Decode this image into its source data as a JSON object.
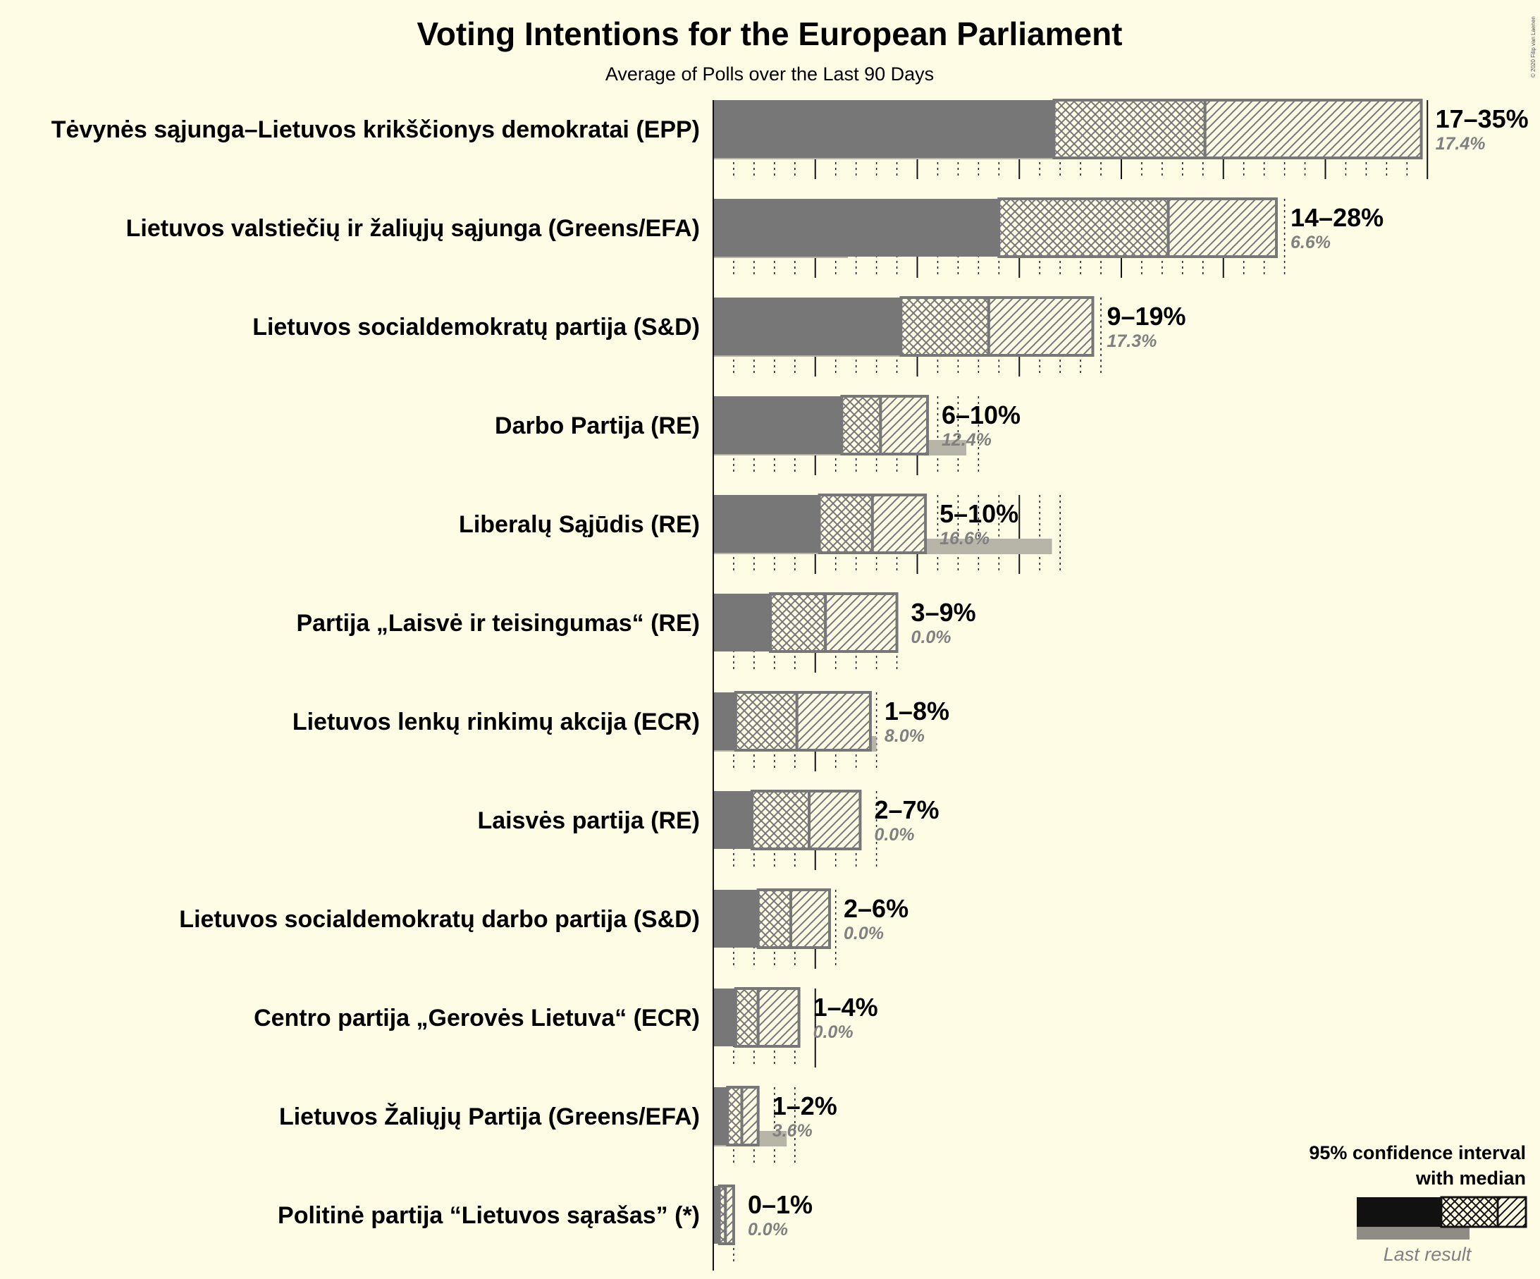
{
  "chart_data": {
    "type": "bar",
    "title": "Voting Intentions for the European Parliament",
    "subtitle": "Average of Polls over the Last 90 Days",
    "copyright": "© 2020 Filip van Laenen",
    "xlim": [
      0,
      35
    ],
    "grid": true,
    "legend_position": "bottom-right",
    "parties": [
      {
        "name": "Tėvynės sąjunga–Lietuvos krikščionys demokratai (EPP)",
        "low": 16.7,
        "q1": 24.1,
        "median": 24.1,
        "q3": 24.1,
        "high": 34.7,
        "ci_low": 16.7,
        "ci_mid": 24.1,
        "ci_high": 34.7,
        "label": "17–35%",
        "last": 17.4,
        "last_label": "17.4%"
      },
      {
        "name": "Lietuvos valstiečių ir žaliųjų sąjunga (Greens/EFA)",
        "low": 14.0,
        "ci_mid": 22.3,
        "high": 27.6,
        "label": "14–28%",
        "last": 6.6,
        "last_label": "6.6%"
      },
      {
        "name": "Lietuvos socialdemokratų partija (S&D)",
        "low": 9.2,
        "ci_mid": 13.5,
        "high": 18.6,
        "label": "9–19%",
        "last": 17.3,
        "last_label": "17.3%"
      },
      {
        "name": "Darbo Partija (RE)",
        "low": 6.3,
        "ci_mid": 8.2,
        "high": 10.5,
        "label": "6–10%",
        "last": 12.4,
        "last_label": "12.4%"
      },
      {
        "name": "Liberalų Sąjūdis (RE)",
        "low": 5.2,
        "ci_mid": 7.8,
        "high": 10.4,
        "label": "5–10%",
        "last": 16.6,
        "last_label": "16.6%"
      },
      {
        "name": "Partija „Laisvė ir teisingumas“ (RE)",
        "low": 2.8,
        "ci_mid": 5.5,
        "high": 9.0,
        "label": "3–9%",
        "last": 0.0,
        "last_label": "0.0%"
      },
      {
        "name": "Lietuvos lenkų rinkimų akcija (ECR)",
        "low": 1.1,
        "ci_mid": 4.1,
        "high": 7.7,
        "label": "1–8%",
        "last": 8.0,
        "last_label": "8.0%"
      },
      {
        "name": "Laisvės partija (RE)",
        "low": 1.9,
        "ci_mid": 4.7,
        "high": 7.2,
        "label": "2–7%",
        "last": 0.0,
        "last_label": "0.0%"
      },
      {
        "name": "Lietuvos socialdemokratų darbo partija (S&D)",
        "low": 2.2,
        "ci_mid": 3.8,
        "high": 5.7,
        "label": "2–6%",
        "last": 0.0,
        "last_label": "0.0%"
      },
      {
        "name": "Centro partija „Gerovės Lietuva“ (ECR)",
        "low": 1.1,
        "ci_mid": 2.2,
        "high": 4.2,
        "label": "1–4%",
        "last": 0.0,
        "last_label": "0.0%"
      },
      {
        "name": "Lietuvos Žaliųjų Partija (Greens/EFA)",
        "low": 0.7,
        "ci_mid": 1.4,
        "high": 2.2,
        "label": "1–2%",
        "last": 3.6,
        "last_label": "3.6%"
      },
      {
        "name": "Politinė partija “Lietuvos sąrašas” (*)",
        "low": 0.3,
        "ci_mid": 0.6,
        "high": 1.0,
        "label": "0–1%",
        "last": 0.0,
        "last_label": "0.0%"
      }
    ],
    "legend": {
      "line1": "95% confidence interval",
      "line2": "with median",
      "last_result": "Last result"
    }
  },
  "colors": {
    "background": "#FFFCE6",
    "bar_solid": "#777777",
    "bar_outline": "#777777",
    "last_result": "#B7B4A8",
    "legend_solid": "#111111",
    "text": "#111111",
    "last_text": "#808080"
  }
}
